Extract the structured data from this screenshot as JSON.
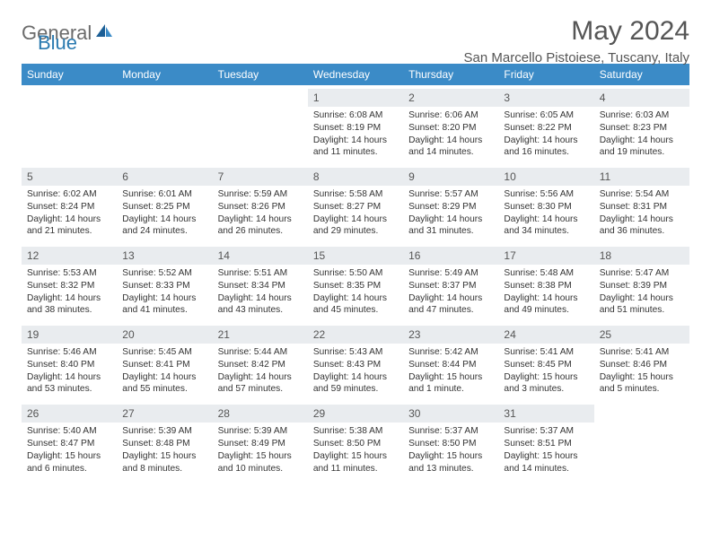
{
  "brand": {
    "general": "General",
    "blue": "Blue"
  },
  "title": "May 2024",
  "location": "San Marcello Pistoiese, Tuscany, Italy",
  "header_bg": "#3b8bc7",
  "daynum_bg": "#e9ecef",
  "weekdays": [
    "Sunday",
    "Monday",
    "Tuesday",
    "Wednesday",
    "Thursday",
    "Friday",
    "Saturday"
  ],
  "weeks": [
    [
      null,
      null,
      null,
      {
        "num": "1",
        "sunrise": "Sunrise: 6:08 AM",
        "sunset": "Sunset: 8:19 PM",
        "daylight1": "Daylight: 14 hours",
        "daylight2": "and 11 minutes."
      },
      {
        "num": "2",
        "sunrise": "Sunrise: 6:06 AM",
        "sunset": "Sunset: 8:20 PM",
        "daylight1": "Daylight: 14 hours",
        "daylight2": "and 14 minutes."
      },
      {
        "num": "3",
        "sunrise": "Sunrise: 6:05 AM",
        "sunset": "Sunset: 8:22 PM",
        "daylight1": "Daylight: 14 hours",
        "daylight2": "and 16 minutes."
      },
      {
        "num": "4",
        "sunrise": "Sunrise: 6:03 AM",
        "sunset": "Sunset: 8:23 PM",
        "daylight1": "Daylight: 14 hours",
        "daylight2": "and 19 minutes."
      }
    ],
    [
      {
        "num": "5",
        "sunrise": "Sunrise: 6:02 AM",
        "sunset": "Sunset: 8:24 PM",
        "daylight1": "Daylight: 14 hours",
        "daylight2": "and 21 minutes."
      },
      {
        "num": "6",
        "sunrise": "Sunrise: 6:01 AM",
        "sunset": "Sunset: 8:25 PM",
        "daylight1": "Daylight: 14 hours",
        "daylight2": "and 24 minutes."
      },
      {
        "num": "7",
        "sunrise": "Sunrise: 5:59 AM",
        "sunset": "Sunset: 8:26 PM",
        "daylight1": "Daylight: 14 hours",
        "daylight2": "and 26 minutes."
      },
      {
        "num": "8",
        "sunrise": "Sunrise: 5:58 AM",
        "sunset": "Sunset: 8:27 PM",
        "daylight1": "Daylight: 14 hours",
        "daylight2": "and 29 minutes."
      },
      {
        "num": "9",
        "sunrise": "Sunrise: 5:57 AM",
        "sunset": "Sunset: 8:29 PM",
        "daylight1": "Daylight: 14 hours",
        "daylight2": "and 31 minutes."
      },
      {
        "num": "10",
        "sunrise": "Sunrise: 5:56 AM",
        "sunset": "Sunset: 8:30 PM",
        "daylight1": "Daylight: 14 hours",
        "daylight2": "and 34 minutes."
      },
      {
        "num": "11",
        "sunrise": "Sunrise: 5:54 AM",
        "sunset": "Sunset: 8:31 PM",
        "daylight1": "Daylight: 14 hours",
        "daylight2": "and 36 minutes."
      }
    ],
    [
      {
        "num": "12",
        "sunrise": "Sunrise: 5:53 AM",
        "sunset": "Sunset: 8:32 PM",
        "daylight1": "Daylight: 14 hours",
        "daylight2": "and 38 minutes."
      },
      {
        "num": "13",
        "sunrise": "Sunrise: 5:52 AM",
        "sunset": "Sunset: 8:33 PM",
        "daylight1": "Daylight: 14 hours",
        "daylight2": "and 41 minutes."
      },
      {
        "num": "14",
        "sunrise": "Sunrise: 5:51 AM",
        "sunset": "Sunset: 8:34 PM",
        "daylight1": "Daylight: 14 hours",
        "daylight2": "and 43 minutes."
      },
      {
        "num": "15",
        "sunrise": "Sunrise: 5:50 AM",
        "sunset": "Sunset: 8:35 PM",
        "daylight1": "Daylight: 14 hours",
        "daylight2": "and 45 minutes."
      },
      {
        "num": "16",
        "sunrise": "Sunrise: 5:49 AM",
        "sunset": "Sunset: 8:37 PM",
        "daylight1": "Daylight: 14 hours",
        "daylight2": "and 47 minutes."
      },
      {
        "num": "17",
        "sunrise": "Sunrise: 5:48 AM",
        "sunset": "Sunset: 8:38 PM",
        "daylight1": "Daylight: 14 hours",
        "daylight2": "and 49 minutes."
      },
      {
        "num": "18",
        "sunrise": "Sunrise: 5:47 AM",
        "sunset": "Sunset: 8:39 PM",
        "daylight1": "Daylight: 14 hours",
        "daylight2": "and 51 minutes."
      }
    ],
    [
      {
        "num": "19",
        "sunrise": "Sunrise: 5:46 AM",
        "sunset": "Sunset: 8:40 PM",
        "daylight1": "Daylight: 14 hours",
        "daylight2": "and 53 minutes."
      },
      {
        "num": "20",
        "sunrise": "Sunrise: 5:45 AM",
        "sunset": "Sunset: 8:41 PM",
        "daylight1": "Daylight: 14 hours",
        "daylight2": "and 55 minutes."
      },
      {
        "num": "21",
        "sunrise": "Sunrise: 5:44 AM",
        "sunset": "Sunset: 8:42 PM",
        "daylight1": "Daylight: 14 hours",
        "daylight2": "and 57 minutes."
      },
      {
        "num": "22",
        "sunrise": "Sunrise: 5:43 AM",
        "sunset": "Sunset: 8:43 PM",
        "daylight1": "Daylight: 14 hours",
        "daylight2": "and 59 minutes."
      },
      {
        "num": "23",
        "sunrise": "Sunrise: 5:42 AM",
        "sunset": "Sunset: 8:44 PM",
        "daylight1": "Daylight: 15 hours",
        "daylight2": "and 1 minute."
      },
      {
        "num": "24",
        "sunrise": "Sunrise: 5:41 AM",
        "sunset": "Sunset: 8:45 PM",
        "daylight1": "Daylight: 15 hours",
        "daylight2": "and 3 minutes."
      },
      {
        "num": "25",
        "sunrise": "Sunrise: 5:41 AM",
        "sunset": "Sunset: 8:46 PM",
        "daylight1": "Daylight: 15 hours",
        "daylight2": "and 5 minutes."
      }
    ],
    [
      {
        "num": "26",
        "sunrise": "Sunrise: 5:40 AM",
        "sunset": "Sunset: 8:47 PM",
        "daylight1": "Daylight: 15 hours",
        "daylight2": "and 6 minutes."
      },
      {
        "num": "27",
        "sunrise": "Sunrise: 5:39 AM",
        "sunset": "Sunset: 8:48 PM",
        "daylight1": "Daylight: 15 hours",
        "daylight2": "and 8 minutes."
      },
      {
        "num": "28",
        "sunrise": "Sunrise: 5:39 AM",
        "sunset": "Sunset: 8:49 PM",
        "daylight1": "Daylight: 15 hours",
        "daylight2": "and 10 minutes."
      },
      {
        "num": "29",
        "sunrise": "Sunrise: 5:38 AM",
        "sunset": "Sunset: 8:50 PM",
        "daylight1": "Daylight: 15 hours",
        "daylight2": "and 11 minutes."
      },
      {
        "num": "30",
        "sunrise": "Sunrise: 5:37 AM",
        "sunset": "Sunset: 8:50 PM",
        "daylight1": "Daylight: 15 hours",
        "daylight2": "and 13 minutes."
      },
      {
        "num": "31",
        "sunrise": "Sunrise: 5:37 AM",
        "sunset": "Sunset: 8:51 PM",
        "daylight1": "Daylight: 15 hours",
        "daylight2": "and 14 minutes."
      },
      null
    ]
  ]
}
